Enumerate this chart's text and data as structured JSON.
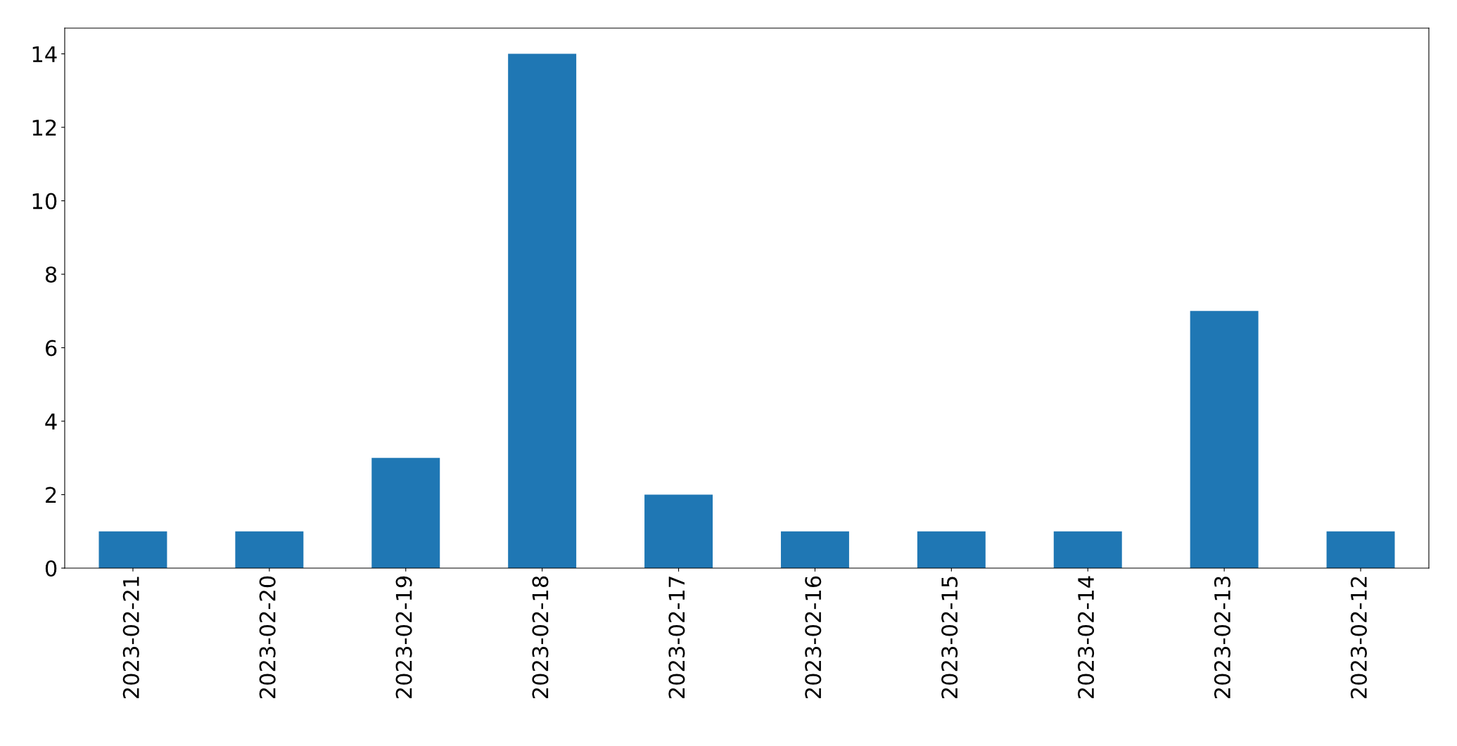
{
  "chart_data": {
    "type": "bar",
    "categories": [
      "2023-02-21",
      "2023-02-20",
      "2023-02-19",
      "2023-02-18",
      "2023-02-17",
      "2023-02-16",
      "2023-02-15",
      "2023-02-14",
      "2023-02-13",
      "2023-02-12"
    ],
    "values": [
      1,
      1,
      3,
      14,
      2,
      1,
      1,
      1,
      7,
      1
    ],
    "color": "#1f77b4",
    "ylim": [
      0,
      14.7
    ],
    "yticks": [
      0,
      2,
      4,
      6,
      8,
      10,
      12,
      14
    ],
    "grid": false,
    "legend": false
  }
}
